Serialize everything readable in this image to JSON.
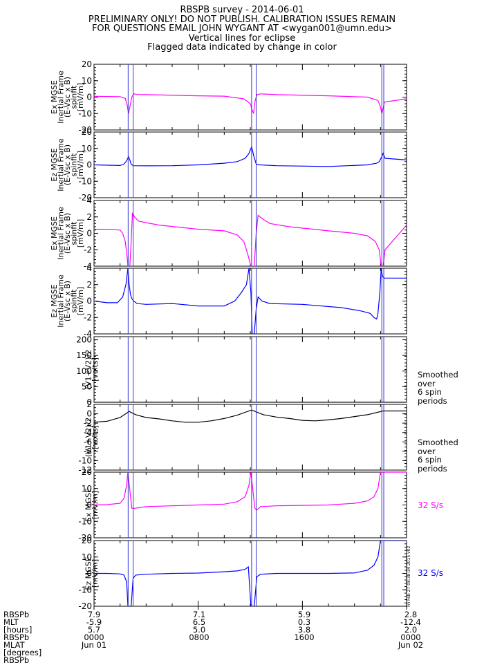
{
  "header": {
    "title": "RBSPB survey - 2014-06-01",
    "line2": "PRELIMINARY ONLY! DO NOT PUBLISH. CALIBRATION ISSUES REMAIN",
    "line3": "FOR QUESTIONS EMAIL JOHN WYGANT AT <wygan001@umn.edu>",
    "line4": "Vertical lines for eclipse",
    "line5": "Flagged data indicated by change in color"
  },
  "colors": {
    "magenta": "#ff00ff",
    "blue": "#0000ff",
    "black": "#000000",
    "eclipse": "#3333cc"
  },
  "chart_data": [
    {
      "type": "line",
      "panel": 1,
      "ylabel_lines": [
        "Ex MGSE",
        "Inertial Frame",
        "(E-Vsc x B)",
        "spinfit",
        "[mV/m]"
      ],
      "ylim": [
        -20,
        20
      ],
      "yticks": [
        "20",
        "10",
        "0",
        "-10",
        "-20"
      ],
      "color": "#ff00ff",
      "series": [
        {
          "x": [
            0,
            2,
            2.4,
            2.55,
            2.65,
            2.75,
            2.9,
            3.05,
            3.3,
            4,
            8,
            10,
            11.5,
            12,
            12.15,
            12.25,
            12.35,
            12.5,
            12.8,
            14,
            18,
            21,
            21.8,
            22,
            22.1,
            22.2,
            22.3,
            24
          ],
          "y": [
            0.5,
            0.3,
            -0.8,
            -5,
            -10,
            -6,
            0,
            2,
            1.6,
            1.5,
            0.8,
            0.6,
            -1,
            -4,
            -8,
            -10,
            -3,
            1.5,
            2,
            1.5,
            0.8,
            0,
            -2,
            -6,
            -10,
            -7,
            -3,
            -1
          ]
        }
      ]
    },
    {
      "type": "line",
      "panel": 2,
      "ylabel_lines": [
        "Ez MGSE",
        "Inertial Frame",
        "(E-Vsc x B)",
        "spinfit",
        "[mV/m]"
      ],
      "ylim": [
        -20,
        20
      ],
      "yticks": [
        "20",
        "10",
        "0",
        "-10",
        "-20"
      ],
      "color": "#0000ff",
      "series": [
        {
          "x": [
            0,
            2,
            2.3,
            2.5,
            2.65,
            2.75,
            2.85,
            3,
            4,
            6,
            8,
            10,
            11,
            11.6,
            11.9,
            12.1,
            12.25,
            12.45,
            12.7,
            14,
            18,
            21,
            21.7,
            21.9,
            22.1,
            22.2,
            22.35,
            24
          ],
          "y": [
            0,
            -0.4,
            0.5,
            2.5,
            5,
            3,
            0.5,
            -0.5,
            -0.6,
            -0.5,
            0,
            1,
            2,
            4,
            7,
            11,
            6,
            0.5,
            0,
            -0.5,
            -1,
            0,
            1,
            2,
            5,
            7,
            4,
            3
          ]
        }
      ]
    },
    {
      "type": "line",
      "panel": 3,
      "ylabel_lines": [
        "Ex MGSE",
        "Inertial Frame",
        "(E-Vsc x B)",
        "spinfit",
        "[mV/m]"
      ],
      "ylim": [
        -4,
        4
      ],
      "yticks": [
        "4",
        "2",
        "0",
        "-2",
        "-4"
      ],
      "color": "#ff00ff",
      "series": [
        {
          "x": [
            0,
            1,
            2,
            2.2,
            2.4,
            2.55,
            2.6,
            2.75,
            2.85,
            2.95,
            3.1,
            3.4,
            4,
            5,
            8,
            10,
            11,
            11.5,
            11.8,
            12.05,
            12.15,
            12.3,
            12.45,
            12.6,
            12.9,
            13.5,
            15,
            18,
            20,
            21,
            21.6,
            21.9,
            22.05,
            22.2,
            22.35,
            24
          ],
          "y": [
            0.5,
            0.5,
            0.4,
            0,
            -1,
            -3,
            -4,
            -4,
            -1,
            2.5,
            2,
            1.5,
            1.3,
            1,
            0.5,
            0.3,
            -0.2,
            -1,
            -2.5,
            -4,
            -4,
            -4,
            0,
            2.2,
            1.8,
            1.2,
            0.8,
            0.3,
            0,
            -0.3,
            -1,
            -2,
            -4,
            -4,
            -2,
            1
          ]
        }
      ]
    },
    {
      "type": "line",
      "panel": 4,
      "ylabel_lines": [
        "Ez MGSE",
        "Inertial Frame",
        "(E-Vsc x B)",
        "spinfit",
        "[mV/m]"
      ],
      "ylim": [
        -4,
        4
      ],
      "yticks": [
        "4",
        "2",
        "0",
        "-2",
        "-4"
      ],
      "color": "#0000ff",
      "series": [
        {
          "x": [
            0,
            1,
            1.8,
            2.2,
            2.45,
            2.6,
            2.7,
            2.8,
            2.9,
            3.05,
            3.3,
            4,
            6,
            8,
            10,
            10.8,
            11.3,
            11.7,
            11.9,
            12.05,
            12.15,
            12.3,
            12.45,
            12.6,
            12.9,
            13.5,
            16,
            19,
            20.5,
            21.2,
            21.5,
            21.7,
            21.8,
            21.95,
            22.05,
            22.15,
            22.3,
            24
          ],
          "y": [
            0,
            -0.2,
            -0.2,
            0.5,
            2,
            4,
            2,
            0.8,
            0.3,
            0,
            -0.3,
            -0.4,
            -0.3,
            -0.6,
            -0.6,
            0,
            1,
            2,
            4,
            1,
            -4,
            -4,
            -1,
            0.5,
            0,
            -0.3,
            -0.4,
            -0.8,
            -1.2,
            -1.5,
            -2,
            -2.2,
            -1.5,
            1,
            4,
            3,
            2.8,
            2.8
          ]
        }
      ]
    },
    {
      "type": "line",
      "panel": 5,
      "ylabel_lines": [
        "(V1+V2)/2",
        "[volts]"
      ],
      "ylim": [
        0,
        210
      ],
      "yticks": [
        "200",
        "150",
        "100",
        "50",
        "0"
      ],
      "color": "#000000",
      "side_note": [
        "Smoothed",
        "over",
        "6 spin",
        "periods"
      ],
      "series": [
        {
          "x": [
            0,
            6,
            12,
            18,
            24
          ],
          "y": [
            0.3,
            0.2,
            0.3,
            0.2,
            0.3
          ]
        }
      ]
    },
    {
      "type": "line",
      "panel": 6,
      "ylabel_lines": [
        "(V1+V2)/2",
        "[volts]"
      ],
      "ylim": [
        -12,
        2
      ],
      "yticks": [
        "2",
        "0",
        "-2",
        "-4",
        "-6",
        "-8",
        "-10",
        "-12"
      ],
      "color": "#000000",
      "side_note": [
        "Smoothed",
        "over",
        "6 spin",
        "periods"
      ],
      "series": [
        {
          "x": [
            0,
            1,
            2,
            2.7,
            3.2,
            4,
            5,
            6,
            7,
            8,
            9,
            10,
            11,
            12.1,
            13,
            14,
            15,
            16,
            17,
            18,
            19,
            20,
            21,
            22.2,
            24
          ],
          "y": [
            -1.8,
            -1.6,
            -0.8,
            0.5,
            -0.2,
            -0.8,
            -1.1,
            -1.5,
            -1.8,
            -1.8,
            -1.5,
            -1,
            -0.3,
            0.8,
            -0.2,
            -0.7,
            -1,
            -1.4,
            -1.5,
            -1.3,
            -1,
            -0.6,
            -0.2,
            0.6,
            0.6
          ]
        }
      ]
    },
    {
      "type": "line",
      "panel": 7,
      "ylabel_lines": [
        "Ex MGSE",
        "[mV/m]"
      ],
      "ylim": [
        -20,
        20
      ],
      "yticks": [
        "20",
        "10",
        "0",
        "-10",
        "-20"
      ],
      "color": "#ff00ff",
      "side_note": [
        "32 S/s"
      ],
      "side_note_color": "#ff00ff",
      "series": [
        {
          "x": [
            0,
            1,
            2,
            2.3,
            2.5,
            2.6,
            2.9,
            3.1,
            4,
            6,
            8,
            10,
            11,
            11.6,
            11.9,
            12.05,
            12.35,
            12.5,
            12.8,
            14,
            18,
            20,
            21,
            21.5,
            21.8,
            22.0,
            22.3,
            24
          ],
          "y": [
            0,
            0.2,
            1,
            4,
            12,
            20,
            -2,
            -2,
            -1,
            -0.5,
            0,
            0.5,
            2,
            5,
            12,
            20,
            -2,
            -3,
            -1,
            -0.5,
            0,
            1,
            2.5,
            5,
            10,
            20,
            20,
            20
          ]
        }
      ]
    },
    {
      "type": "line",
      "panel": 8,
      "ylabel_lines": [
        "Ez MGSE",
        "[mV/m]"
      ],
      "ylim": [
        -20,
        20
      ],
      "yticks": [
        "20",
        "10",
        "0",
        "-10",
        "-20"
      ],
      "color": "#0000ff",
      "side_note": [
        "32 S/s"
      ],
      "side_note_color": "#0000ff",
      "series": [
        {
          "x": [
            0,
            1,
            2,
            2.3,
            2.5,
            2.6,
            2.85,
            3.0,
            3.2,
            4,
            6,
            8,
            10,
            11,
            11.6,
            11.85,
            12.05,
            12.3,
            12.5,
            12.8,
            14,
            18,
            20,
            21,
            21.5,
            21.8,
            22.0,
            22.3,
            24
          ],
          "y": [
            0,
            0,
            -0.3,
            -1,
            -5,
            -20,
            -20,
            -3,
            -1,
            -0.5,
            0,
            0.2,
            1,
            1.5,
            2.5,
            4,
            -20,
            -20,
            -2,
            -0.5,
            0,
            0,
            0.3,
            2,
            5,
            10,
            20,
            20,
            20
          ]
        }
      ]
    }
  ],
  "eclipse_lines_hours": [
    2.62,
    3.0,
    12.1,
    12.45,
    22.1,
    22.25
  ],
  "x_axis": {
    "range_hours": [
      0,
      24
    ],
    "row_labels": [
      "RBSPb",
      "MLT",
      "[hours]",
      "RBSPb",
      "MLAT",
      "[degrees]",
      "RBSPb"
    ],
    "columns": [
      {
        "hour": 0,
        "mlt": "7.9",
        "mlat": "-5.9",
        "l": "5.7",
        "time": "0000",
        "date": "Jun 01"
      },
      {
        "hour": 8,
        "mlt": "7.1",
        "mlat": "6.5",
        "l": "5.0",
        "time": "0800",
        "date": ""
      },
      {
        "hour": 16,
        "mlt": "5.9",
        "mlat": "0.3",
        "l": "3.8",
        "time": "1600",
        "date": ""
      },
      {
        "hour": 24,
        "mlt": "2.8",
        "mlat": "-12.4",
        "l": "2.0",
        "time": "0000",
        "date": "Jun 02"
      }
    ]
  },
  "stamp": "Fri Feb 27 08:38:34 2015 v02"
}
